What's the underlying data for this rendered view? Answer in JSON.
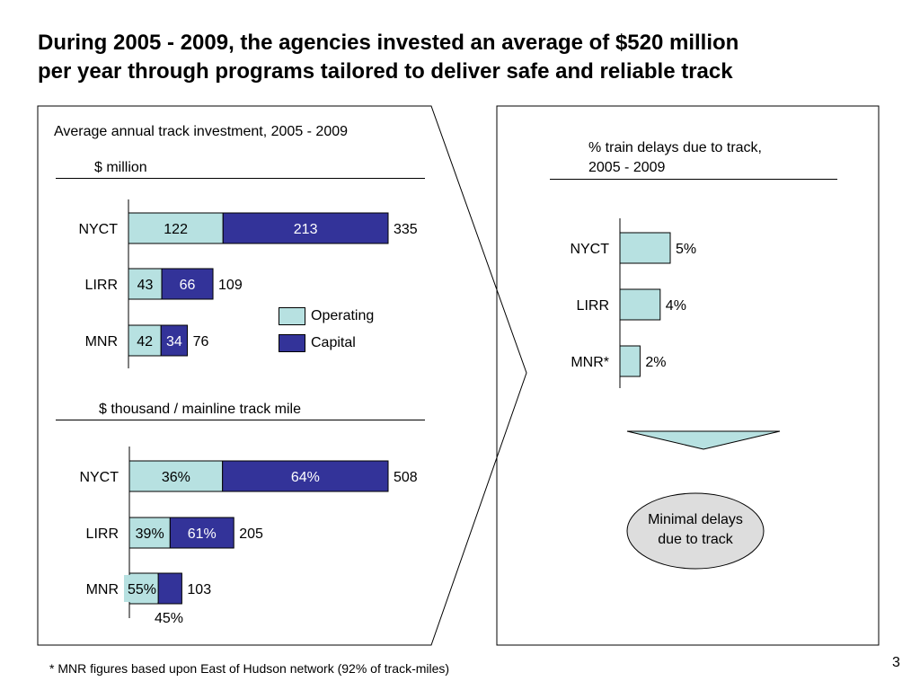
{
  "title": {
    "line1": "During 2005 - 2009, the agencies invested an average of $520 million",
    "line2": "per year through programs tailored to deliver safe and reliable track"
  },
  "left_panel": {
    "heading": "Average annual track investment, 2005 - 2009"
  },
  "legend": {
    "items": [
      {
        "label": "Operating",
        "color": "#b7e1e1"
      },
      {
        "label": "Capital",
        "color": "#333399"
      }
    ]
  },
  "chart_data": [
    {
      "type": "bar",
      "orientation": "horizontal",
      "stacked": true,
      "title": "$ million",
      "categories": [
        "NYCT",
        "LIRR",
        "MNR"
      ],
      "series": [
        {
          "name": "Operating",
          "values": [
            122,
            43,
            42
          ],
          "labels": [
            "122",
            "43",
            "42"
          ],
          "color": "#b7e1e1"
        },
        {
          "name": "Capital",
          "values": [
            213,
            66,
            34
          ],
          "labels": [
            "213",
            "66",
            "34"
          ],
          "color": "#333399"
        }
      ],
      "totals": [
        "335",
        "109",
        "76"
      ],
      "xlim": [
        0,
        335
      ]
    },
    {
      "type": "bar",
      "orientation": "horizontal",
      "stacked": true,
      "title": "$ thousand / mainline track mile",
      "categories": [
        "NYCT",
        "LIRR",
        "MNR"
      ],
      "totals_values": [
        508,
        205,
        103
      ],
      "totals": [
        "508",
        "205",
        "103"
      ],
      "series": [
        {
          "name": "Operating",
          "share": [
            0.36,
            0.39,
            0.55
          ],
          "labels": [
            "36%",
            "39%",
            "55%"
          ],
          "color": "#b7e1e1"
        },
        {
          "name": "Capital",
          "share": [
            0.64,
            0.61,
            0.45
          ],
          "labels": [
            "64%",
            "61%",
            "45%"
          ],
          "color": "#333399"
        }
      ],
      "xlim": [
        0,
        508
      ]
    },
    {
      "type": "bar",
      "orientation": "horizontal",
      "title": "% train delays due to track,\n2005 - 2009",
      "categories": [
        "NYCT",
        "LIRR",
        "MNR*"
      ],
      "values": [
        5,
        4,
        2
      ],
      "labels": [
        "5%",
        "4%",
        "2%"
      ],
      "color": "#b7e1e1",
      "xlim": [
        0,
        5
      ]
    }
  ],
  "right_panel": {
    "title_line1": "% train delays due to track,",
    "title_line2": "2005 - 2009",
    "conclusion_line1": "Minimal delays",
    "conclusion_line2": "due to track"
  },
  "footnote": "* MNR figures based upon East of Hudson network (92% of track-miles)",
  "page_number": "3"
}
